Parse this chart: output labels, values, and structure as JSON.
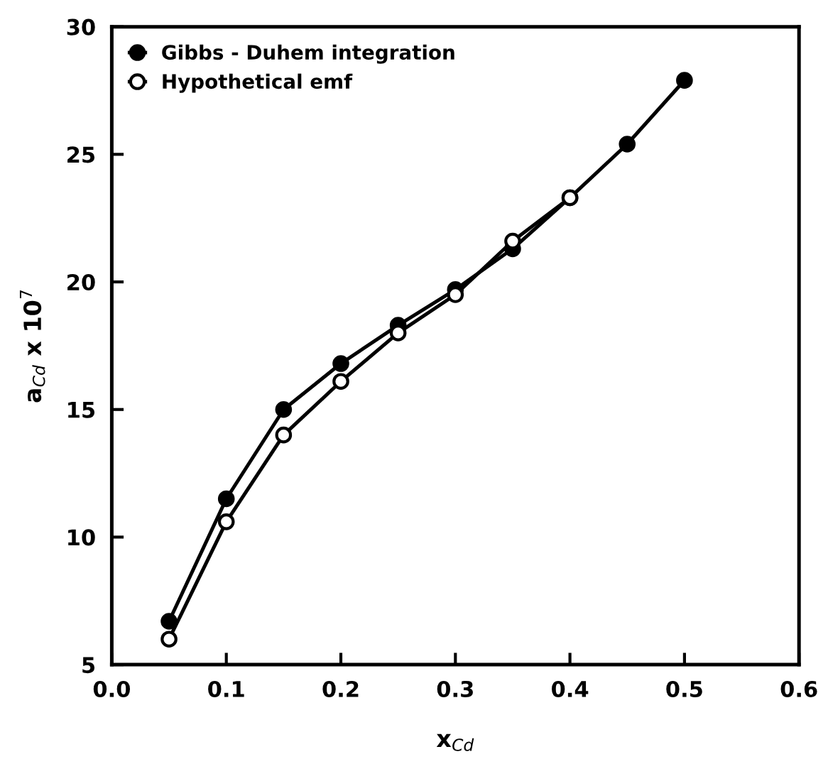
{
  "chart_data": {
    "type": "line",
    "xlabel": "x$_{Cd}$",
    "ylabel": "a$_{Cd}$ x 10$^{7}$",
    "xlim": [
      0.0,
      0.6
    ],
    "xticks": [
      {
        "value": 0,
        "label": "0.0"
      },
      0.1,
      0.2,
      0.3,
      0.4,
      0.5,
      0.6
    ],
    "ylim": [
      5,
      30
    ],
    "yticks": [
      5,
      10,
      15,
      20,
      25,
      30
    ],
    "grid": false,
    "legend": "top left",
    "line_style": "solid",
    "series": [
      {
        "name": "Gibbs - Duhem integration",
        "color": "#000000",
        "marker": "circle",
        "x": [
          0.05,
          0.1,
          0.15,
          0.2,
          0.25,
          0.3,
          0.35,
          0.4,
          0.45,
          0.5
        ],
        "values": [
          6.7,
          11.5,
          15.0,
          16.8,
          18.3,
          19.7,
          21.3,
          23.3,
          25.4,
          27.9
        ]
      },
      {
        "name": "Hypothetical emf",
        "color": "#000000",
        "marker": "circle",
        "x": [
          0.05,
          0.1,
          0.15,
          0.2,
          0.25,
          0.3,
          0.35,
          0.4
        ],
        "values": [
          6.0,
          10.6,
          14.0,
          16.1,
          18.0,
          19.5,
          21.6,
          23.3
        ]
      }
    ]
  }
}
